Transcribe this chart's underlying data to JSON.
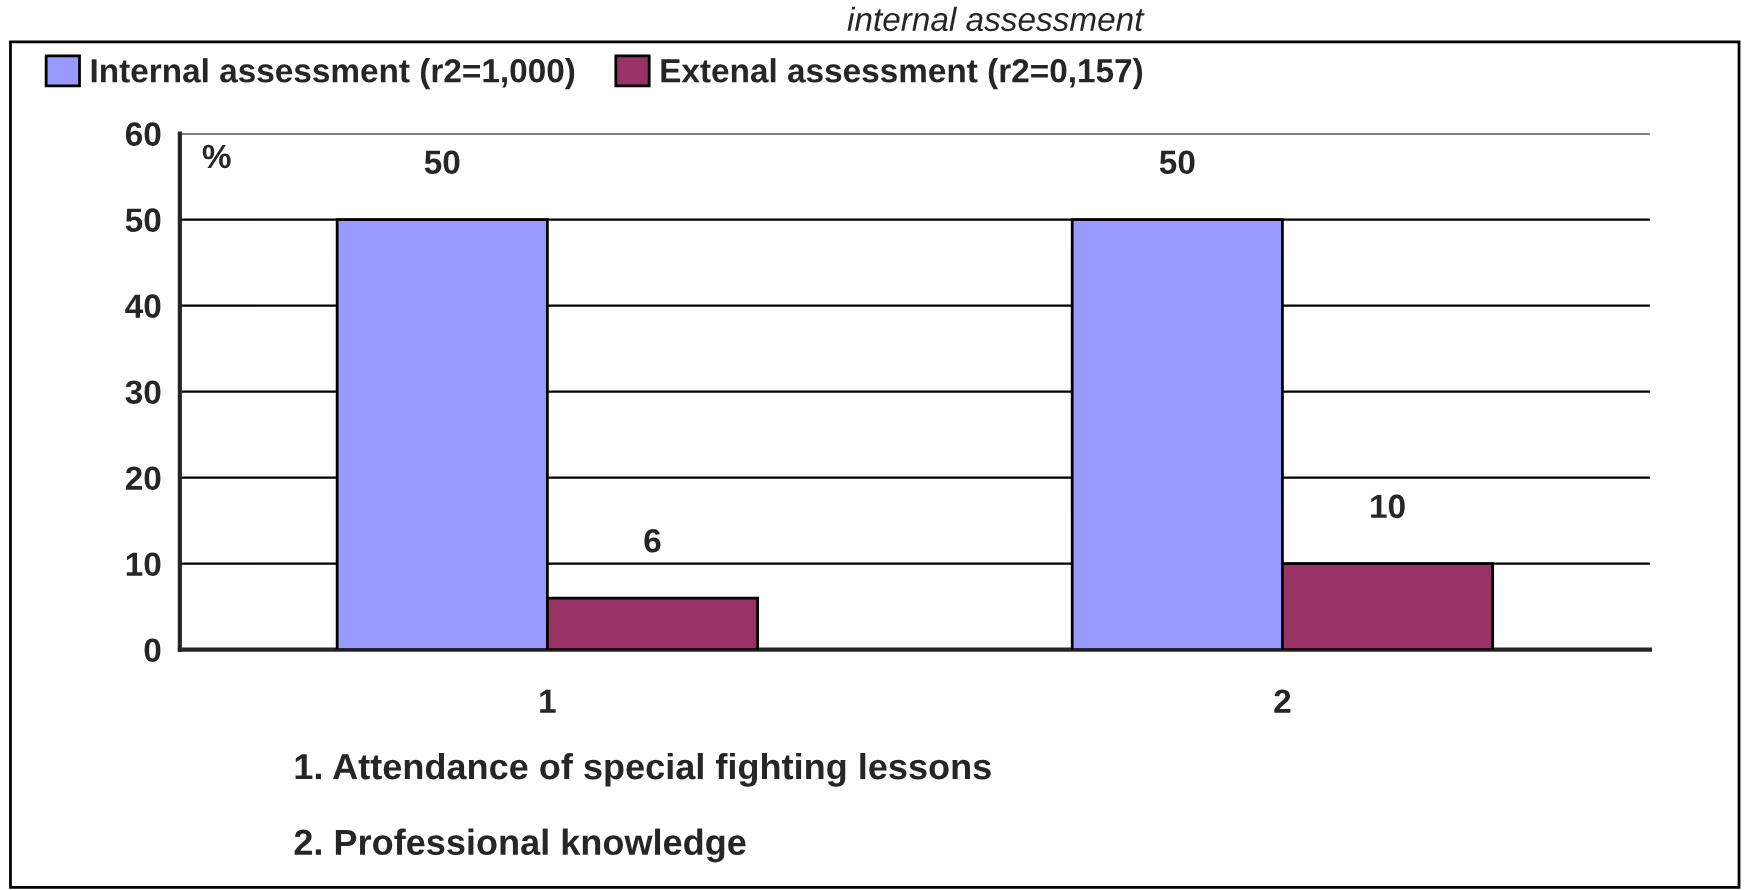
{
  "chart_data": {
    "type": "bar",
    "title": "internal assessment",
    "ylabel": "%",
    "categories": [
      "1",
      "2"
    ],
    "series": [
      {
        "name": "Internal assessment (r2=1,000)",
        "color": "#9999ff",
        "values": [
          50,
          50
        ]
      },
      {
        "name": "Extenal assessment (r2=0,157)",
        "color": "#993366",
        "values": [
          6,
          10
        ]
      }
    ],
    "ylim": [
      0,
      60
    ],
    "yticks": [
      0,
      10,
      20,
      30,
      40,
      50,
      60
    ],
    "grid": "y",
    "legend": "top left",
    "data_labels": true,
    "annotations": [
      "1. Attendance of special fighting lessons",
      "2. Professional knowledge"
    ]
  }
}
